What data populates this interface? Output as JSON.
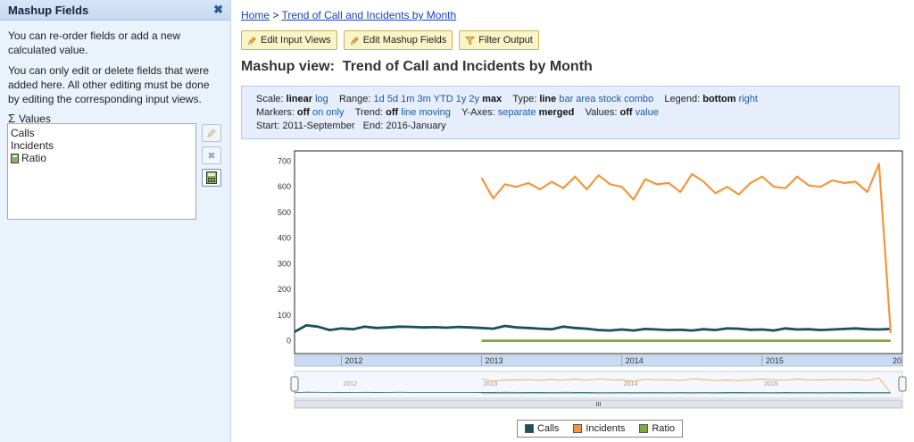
{
  "sidebar": {
    "title": "Mashup Fields",
    "close": "✖",
    "para1": "You can re-order fields or add a new calculated value.",
    "para2": "You can only edit or delete fields that were added here. All other editing must be done by editing the corresponding input views.",
    "values_label": "Values",
    "values_icon": "sigma-icon",
    "items": [
      {
        "label": "Calls"
      },
      {
        "label": "Incidents"
      },
      {
        "label": "Ratio",
        "icon": "calculator-icon"
      }
    ]
  },
  "breadcrumb": {
    "home": "Home",
    "sep": " > ",
    "current": "Trend of Call and Incidents by Month"
  },
  "toolbar": {
    "edit_inputs": "Edit Input Views",
    "edit_mashup": "Edit Mashup Fields",
    "filter": "Filter Output"
  },
  "title": "Mashup view:  Trend of Call and Incidents by Month",
  "controls": {
    "scale_label": "Scale:",
    "scale_opts": [
      "linear",
      "log"
    ],
    "scale_sel": "linear",
    "range_label": "Range:",
    "range_opts": [
      "1d",
      "5d",
      "1m",
      "3m",
      "YTD",
      "1y",
      "2y",
      "max"
    ],
    "range_sel": "max",
    "type_label": "Type:",
    "type_opts": [
      "line",
      "bar",
      "area",
      "stock",
      "combo"
    ],
    "type_sel": "line",
    "legend_label": "Legend:",
    "legend_opts": [
      "bottom",
      "right"
    ],
    "legend_sel": "bottom",
    "markers_label": "Markers:",
    "markers_opts": [
      "off",
      "on",
      "only"
    ],
    "markers_sel": "off",
    "trend_label": "Trend:",
    "trend_opts": [
      "off",
      "line",
      "moving"
    ],
    "trend_sel": "off",
    "yaxes_label": "Y-Axes:",
    "yaxes_opts": [
      "separate",
      "merged"
    ],
    "yaxes_sel": "merged",
    "values_label": "Values:",
    "values_opts": [
      "off",
      "value"
    ],
    "values_sel": "off",
    "start_label": "Start:",
    "start": "2011-September",
    "end_label": "End:",
    "end": "2016-January"
  },
  "colors": {
    "calls": "#1b4f5c",
    "incidents": "#f4963e",
    "ratio": "#82a83a"
  },
  "chart_data": {
    "type": "line",
    "yticks": [
      0,
      100,
      200,
      300,
      400,
      500,
      600,
      700
    ],
    "ylim": [
      -50,
      740
    ],
    "xlabels": [
      "2012",
      "2013",
      "2014",
      "2015",
      "20"
    ],
    "x_start": "2011-09",
    "x_months": [
      "2011-09",
      "2011-10",
      "2011-11",
      "2011-12",
      "2012-01",
      "2012-02",
      "2012-03",
      "2012-04",
      "2012-05",
      "2012-06",
      "2012-07",
      "2012-08",
      "2012-09",
      "2012-10",
      "2012-11",
      "2012-12",
      "2013-01",
      "2013-02",
      "2013-03",
      "2013-04",
      "2013-05",
      "2013-06",
      "2013-07",
      "2013-08",
      "2013-09",
      "2013-10",
      "2013-11",
      "2013-12",
      "2014-01",
      "2014-02",
      "2014-03",
      "2014-04",
      "2014-05",
      "2014-06",
      "2014-07",
      "2014-08",
      "2014-09",
      "2014-10",
      "2014-11",
      "2014-12",
      "2015-01",
      "2015-02",
      "2015-03",
      "2015-04",
      "2015-05",
      "2015-06",
      "2015-07",
      "2015-08",
      "2015-09",
      "2015-10",
      "2015-11",
      "2015-12",
      "2016-01"
    ],
    "series": [
      {
        "name": "Calls",
        "values": [
          35,
          60,
          55,
          42,
          48,
          45,
          55,
          50,
          52,
          55,
          54,
          52,
          53,
          51,
          54,
          52,
          50,
          47,
          58,
          52,
          50,
          47,
          45,
          55,
          50,
          47,
          42,
          40,
          44,
          40,
          46,
          44,
          42,
          43,
          40,
          45,
          42,
          48,
          47,
          43,
          44,
          40,
          48,
          44,
          45,
          42,
          44,
          46,
          48,
          45,
          44,
          46,
          null
        ]
      },
      {
        "name": "Incidents",
        "values": [
          null,
          null,
          null,
          null,
          null,
          null,
          null,
          null,
          null,
          null,
          null,
          null,
          null,
          null,
          null,
          null,
          635,
          555,
          610,
          600,
          615,
          590,
          620,
          595,
          640,
          590,
          645,
          610,
          600,
          550,
          630,
          610,
          615,
          580,
          650,
          620,
          575,
          600,
          570,
          615,
          640,
          600,
          595,
          640,
          605,
          600,
          625,
          615,
          620,
          580,
          690,
          30,
          null
        ]
      },
      {
        "name": "Ratio",
        "values": [
          null,
          null,
          null,
          null,
          null,
          null,
          null,
          null,
          null,
          null,
          null,
          null,
          null,
          null,
          null,
          null,
          0,
          0,
          0,
          0,
          0,
          0,
          0,
          0,
          0,
          0,
          0,
          0,
          0,
          0,
          0,
          0,
          0,
          0,
          0,
          0,
          0,
          0,
          0,
          0,
          0,
          0,
          0,
          0,
          0,
          0,
          0,
          0,
          0,
          0,
          0,
          0,
          null
        ]
      }
    ],
    "legend": "bottom",
    "grid": false
  },
  "legend_items": [
    "Calls",
    "Incidents",
    "Ratio"
  ],
  "navigator_handle": "III"
}
